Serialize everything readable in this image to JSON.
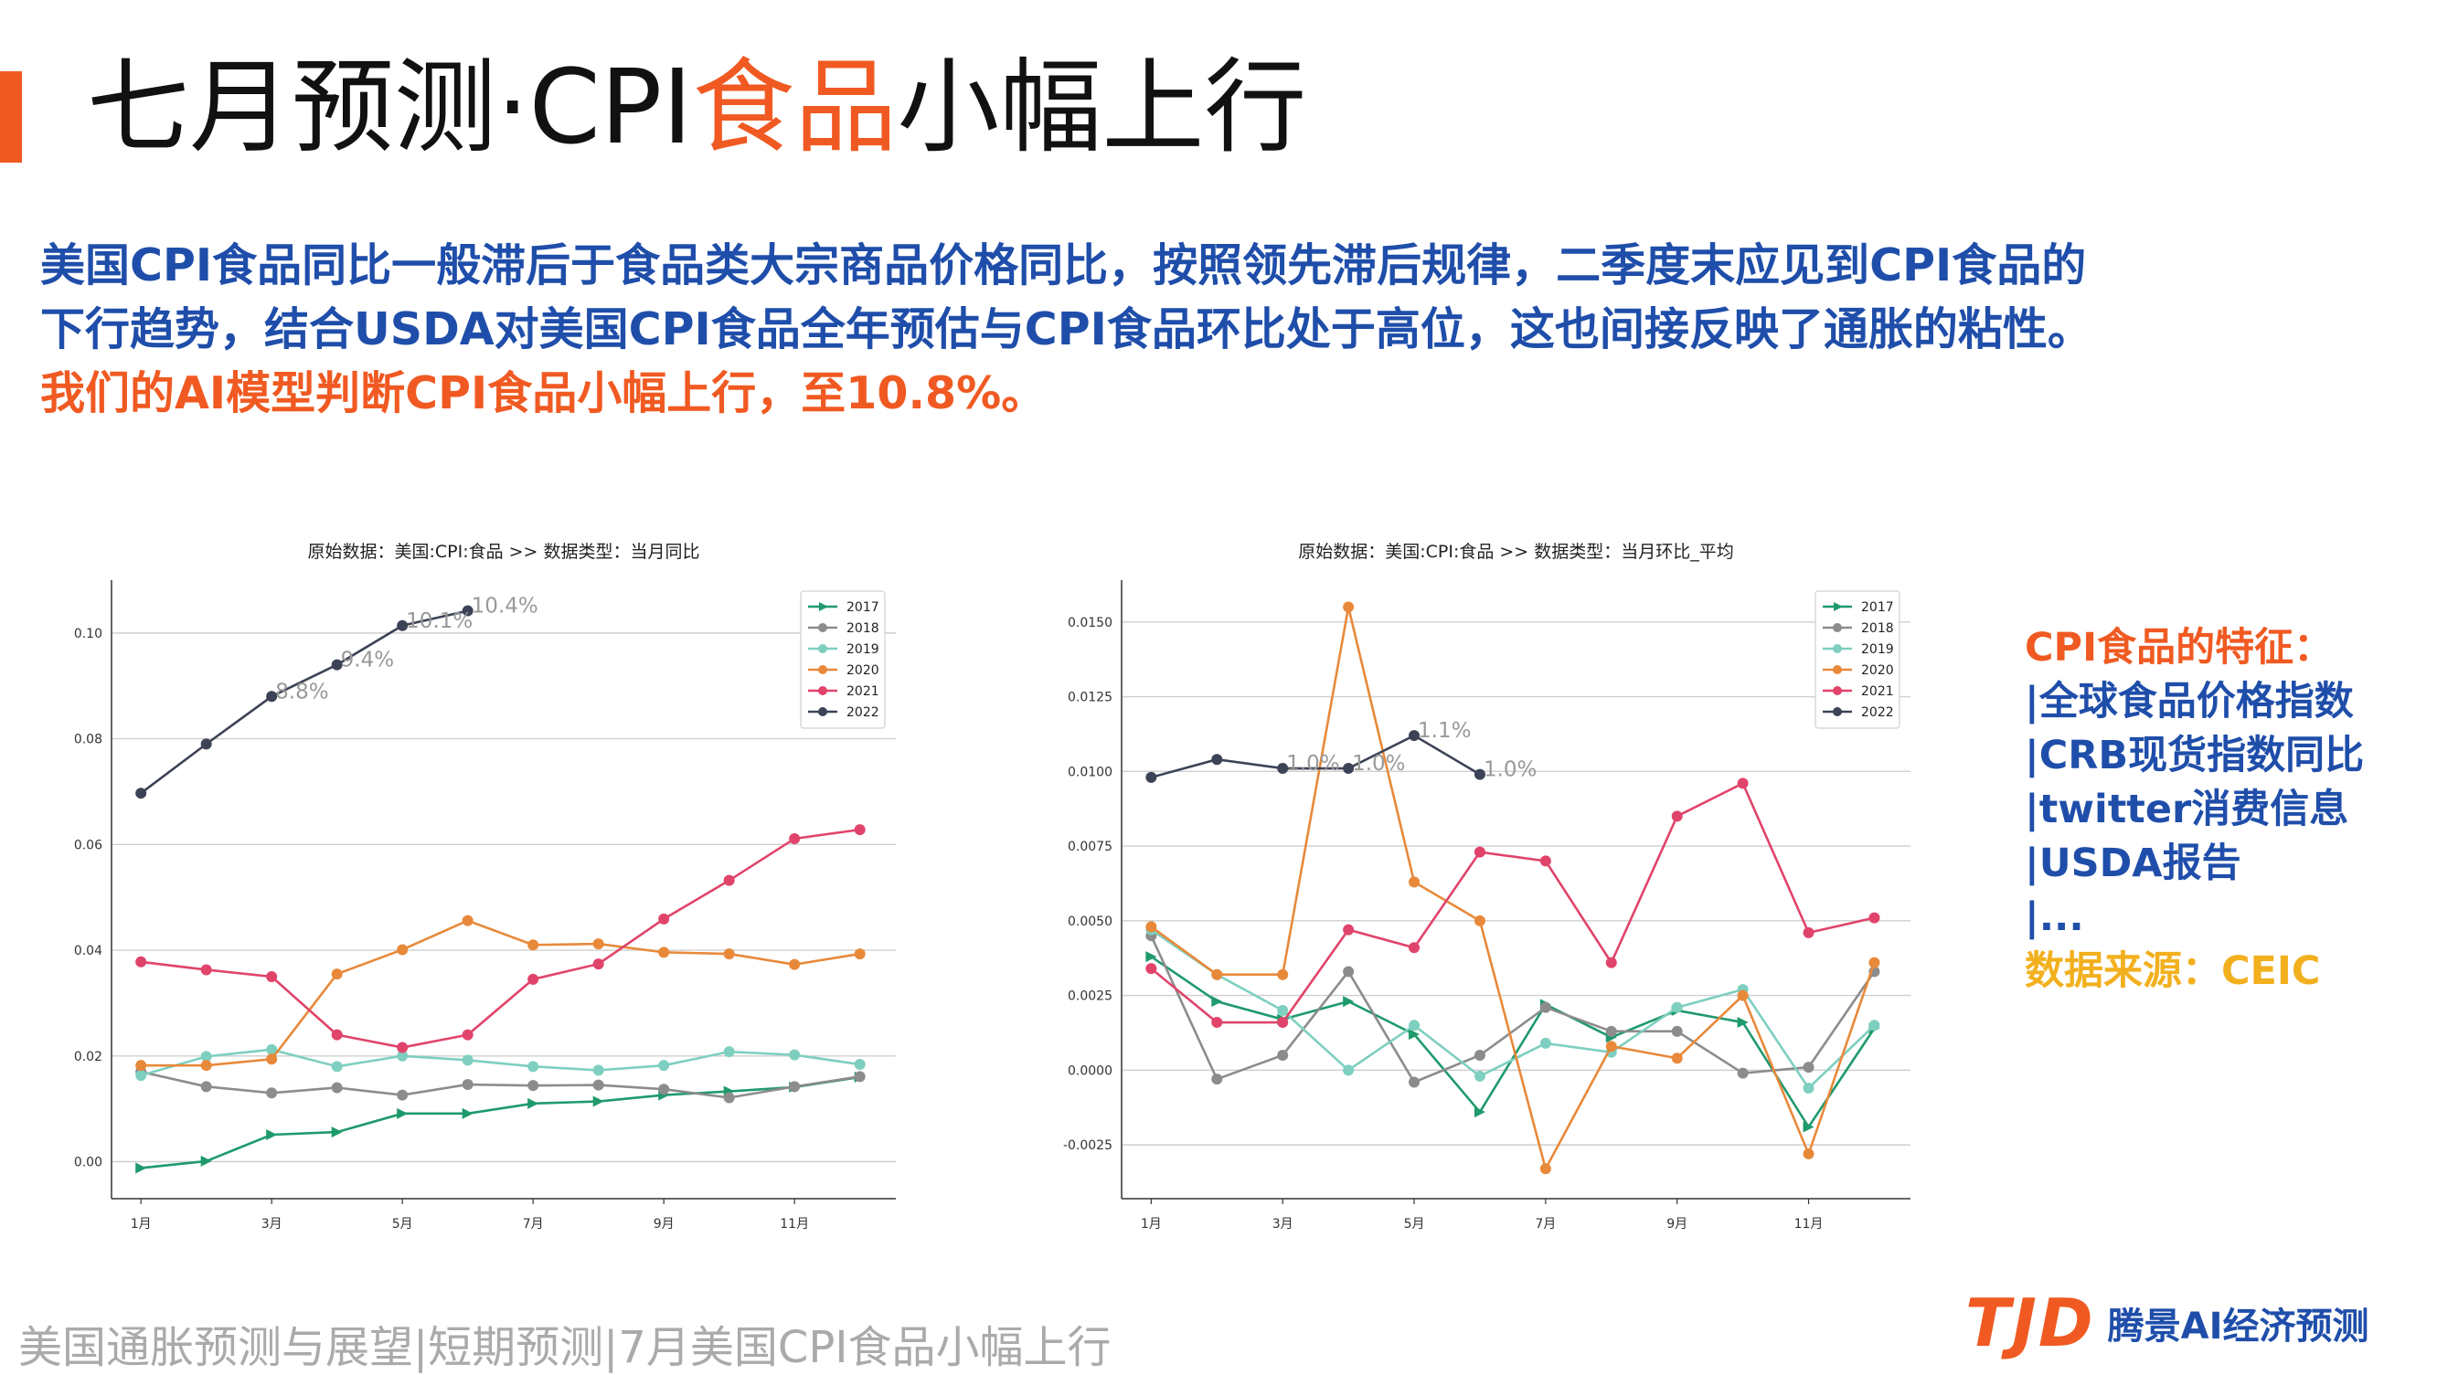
{
  "title": {
    "part1": "七月预测·CPI",
    "highlight": "食品",
    "part2": "小幅上行"
  },
  "paragraph": {
    "line1": "美国CPI食品同比一般滞后于食品类大宗商品价格同比，按照领先滞后规律，二季度末应见到CPI食品的",
    "line2": "下行趋势，结合USDA对美国CPI食品全年预估与CPI食品环比处于高位，这也间接反映了通胀的粘性。",
    "line3": "我们的AI模型判断CPI食品小幅上行，至10.8%。"
  },
  "sidebar": {
    "heading": "CPI食品的特征：",
    "items": [
      "|全球食品价格指数",
      "|CRB现货指数同比",
      "|twitter消费信息",
      "|USDA报告",
      "|..."
    ],
    "source": "数据来源：CEIC"
  },
  "footer": {
    "text": "美国通胀预测与展望|短期预测|7月美国CPI食品小幅上行"
  },
  "logo": {
    "mark": "TJD",
    "name": "腾景AI经济预测"
  },
  "colors": {
    "accent": "#f05a22",
    "blue": "#1f4eaa",
    "gold": "#f2b01e"
  },
  "chart_data": [
    {
      "type": "line",
      "title": "原始数据：美国:CPI:食品 >> 数据类型：当月同比",
      "x_ticks": [
        "1月",
        "3月",
        "5月",
        "7月",
        "9月",
        "11月"
      ],
      "x": [
        1,
        2,
        3,
        4,
        5,
        6,
        7,
        8,
        9,
        10,
        11,
        12
      ],
      "ylim": [
        -0.007,
        0.11
      ],
      "y_ticks": [
        "0.00",
        "0.02",
        "0.04",
        "0.06",
        "0.08",
        "0.10"
      ],
      "y_tick_values": [
        0,
        0.02,
        0.04,
        0.06,
        0.08,
        0.1
      ],
      "legend": "top-right",
      "grid": "horizontal",
      "series": [
        {
          "name": "2017",
          "color": "#1f9a6c",
          "marker": "triangle",
          "values": [
            -0.0012,
            0.0001,
            0.0051,
            0.0056,
            0.0091,
            0.0091,
            0.011,
            0.0114,
            0.0126,
            0.0133,
            0.0141,
            0.016
          ]
        },
        {
          "name": "2018",
          "color": "#8c8c8c",
          "marker": "circle",
          "values": [
            0.017,
            0.0142,
            0.013,
            0.014,
            0.0126,
            0.0146,
            0.0144,
            0.0145,
            0.0137,
            0.0121,
            0.0142,
            0.0161
          ]
        },
        {
          "name": "2019",
          "color": "#7ecfc0",
          "marker": "circle",
          "values": [
            0.0163,
            0.0199,
            0.0212,
            0.018,
            0.02,
            0.0192,
            0.018,
            0.0173,
            0.0182,
            0.0208,
            0.0202,
            0.0184
          ]
        },
        {
          "name": "2020",
          "color": "#e8893a",
          "marker": "circle",
          "values": [
            0.0182,
            0.0182,
            0.0194,
            0.0355,
            0.0401,
            0.0456,
            0.041,
            0.0412,
            0.0396,
            0.0393,
            0.0373,
            0.0393
          ]
        },
        {
          "name": "2021",
          "color": "#e0446a",
          "marker": "circle",
          "values": [
            0.0378,
            0.0363,
            0.035,
            0.024,
            0.0216,
            0.024,
            0.0345,
            0.0374,
            0.0459,
            0.0532,
            0.0611,
            0.0628
          ]
        },
        {
          "name": "2022",
          "color": "#3d4356",
          "marker": "circle",
          "values": [
            0.0697,
            0.079,
            0.088,
            0.094,
            0.1014,
            0.1042,
            null,
            null,
            null,
            null,
            null,
            null
          ]
        }
      ],
      "annotations": [
        {
          "x": 3,
          "y": 0.088,
          "text": "8.8%"
        },
        {
          "x": 4,
          "y": 0.094,
          "text": "9.4%"
        },
        {
          "x": 5,
          "y": 0.1014,
          "text": "10.1%"
        },
        {
          "x": 6,
          "y": 0.1042,
          "text": "10.4%"
        }
      ]
    },
    {
      "type": "line",
      "title": "原始数据：美国:CPI:食品 >> 数据类型：当月环比_平均",
      "x_ticks": [
        "1月",
        "3月",
        "5月",
        "7月",
        "9月",
        "11月"
      ],
      "x": [
        1,
        2,
        3,
        4,
        5,
        6,
        7,
        8,
        9,
        10,
        11,
        12
      ],
      "ylim": [
        -0.0043,
        0.0164
      ],
      "y_ticks": [
        "-0.0025",
        "0.0000",
        "0.0025",
        "0.0050",
        "0.0075",
        "0.0100",
        "0.0125",
        "0.0150"
      ],
      "y_tick_values": [
        -0.0025,
        0,
        0.0025,
        0.005,
        0.0075,
        0.01,
        0.0125,
        0.015
      ],
      "legend": "top-right",
      "grid": "horizontal",
      "series": [
        {
          "name": "2017",
          "color": "#1f9a6c",
          "marker": "triangle",
          "values": [
            0.0038,
            0.0023,
            0.0017,
            0.0023,
            0.0012,
            -0.0014,
            0.0022,
            0.0011,
            0.002,
            0.0016,
            -0.0019,
            0.0014
          ]
        },
        {
          "name": "2018",
          "color": "#8c8c8c",
          "marker": "circle",
          "values": [
            0.0045,
            -0.0003,
            0.0005,
            0.0033,
            -0.0004,
            0.0005,
            0.0021,
            0.0013,
            0.0013,
            -0.0001,
            0.0001,
            0.0033
          ]
        },
        {
          "name": "2019",
          "color": "#7ecfc0",
          "marker": "circle",
          "values": [
            0.0047,
            0.0032,
            0.002,
            0.0,
            0.0015,
            -0.0002,
            0.0009,
            0.0006,
            0.0021,
            0.0027,
            -0.0006,
            0.0015
          ]
        },
        {
          "name": "2020",
          "color": "#e8893a",
          "marker": "circle",
          "values": [
            0.0048,
            0.0032,
            0.0032,
            0.0155,
            0.0063,
            0.005,
            -0.0033,
            0.0008,
            0.0004,
            0.0025,
            -0.0028,
            0.0036
          ]
        },
        {
          "name": "2021",
          "color": "#e0446a",
          "marker": "circle",
          "values": [
            0.0034,
            0.0016,
            0.0016,
            0.0047,
            0.0041,
            0.0073,
            0.007,
            0.0036,
            0.0085,
            0.0096,
            0.0046,
            0.0051
          ]
        },
        {
          "name": "2022",
          "color": "#3d4356",
          "marker": "circle",
          "values": [
            0.0098,
            0.0104,
            0.0101,
            0.0101,
            0.0112,
            0.0099,
            null,
            null,
            null,
            null,
            null,
            null
          ]
        }
      ],
      "annotations": [
        {
          "x": 3,
          "y": 0.0101,
          "text": "1.0%"
        },
        {
          "x": 4,
          "y": 0.0101,
          "text": "1.0%"
        },
        {
          "x": 5,
          "y": 0.0112,
          "text": "1.1%"
        },
        {
          "x": 6,
          "y": 0.0099,
          "text": "1.0%"
        }
      ]
    }
  ]
}
